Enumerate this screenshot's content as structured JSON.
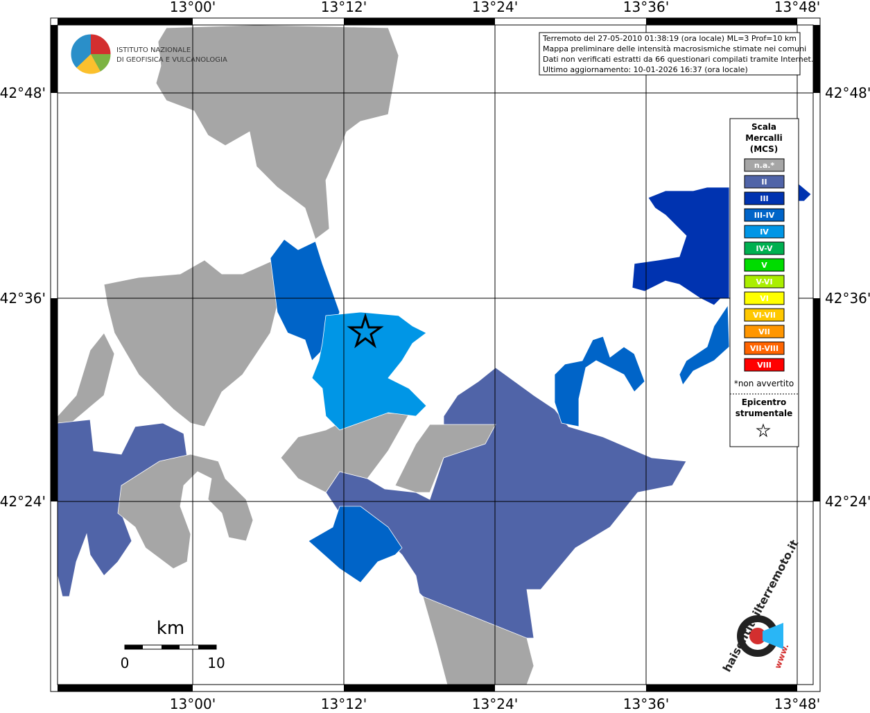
{
  "map": {
    "lon_labels": [
      "13°00'",
      "13°12'",
      "13°24'",
      "13°36'",
      "13°48'"
    ],
    "lat_labels": [
      "42°48'",
      "42°36'",
      "42°24'"
    ]
  },
  "logo": {
    "line1": "ISTITUTO NAZIONALE",
    "line2": "DI GEOFISICA E VULCANOLOGIA"
  },
  "info_box": {
    "lines": [
      "Terremoto del 27-05-2010 01:38:19 (ora locale) ML=3 Prof=10 km",
      "Mappa preliminare delle intensità macrosismiche stimate nei comuni",
      "Dati non verificati estratti da 66 questionari compilati tramite Internet.",
      "Ultimo aggiornamento: 10-01-2026 16:37 (ora locale)"
    ]
  },
  "legend": {
    "title": [
      "Scala",
      "Mercalli",
      "(MCS)"
    ],
    "classes": [
      {
        "label": "n.a.*",
        "color": "#a6a6a6"
      },
      {
        "label": "II",
        "color": "#5064a8"
      },
      {
        "label": "III",
        "color": "#0033b0"
      },
      {
        "label": "III-IV",
        "color": "#0064c8"
      },
      {
        "label": "IV",
        "color": "#0096e6"
      },
      {
        "label": "IV-V",
        "color": "#00b050"
      },
      {
        "label": "V",
        "color": "#00dc00"
      },
      {
        "label": "V-VI",
        "color": "#aaee00"
      },
      {
        "label": "VI",
        "color": "#ffff00"
      },
      {
        "label": "VI-VII",
        "color": "#ffc800"
      },
      {
        "label": "VII",
        "color": "#ff9600"
      },
      {
        "label": "VII-VIII",
        "color": "#ff6400"
      },
      {
        "label": "VIII",
        "color": "#ff0000"
      }
    ],
    "note": "*non avvertito",
    "epicenter": [
      "Epicentro",
      "strumentale"
    ]
  },
  "scale_bar": {
    "unit": "km",
    "ticks": [
      0,
      10
    ]
  },
  "site_logo": {
    "text": "haisentitoilterremoto.it",
    "www": "www."
  }
}
